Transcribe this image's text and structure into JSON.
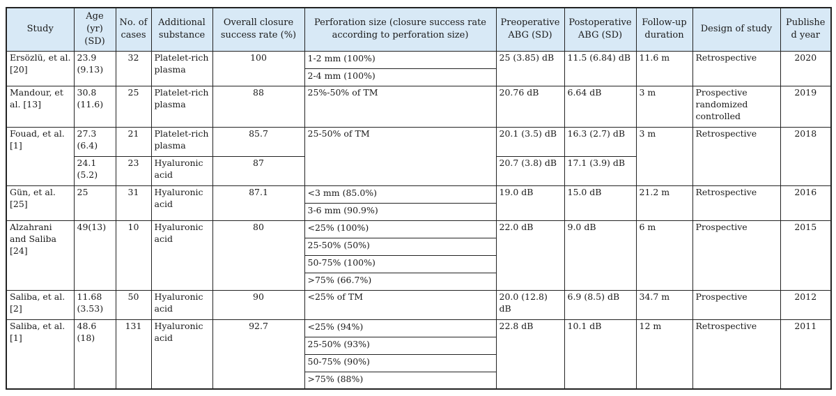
{
  "headers": {
    "study": "Study",
    "age": "Age (yr) (SD)",
    "cases": "No. of cases",
    "substance": "Additional substance",
    "closure": "Overall closure success rate (%)",
    "perforation": "Perforation size (closure success rate according to perforation size)",
    "pre_abg": "Preoperative ABG (SD)",
    "post_abg": "Postoperative ABG (SD)",
    "followup": "Follow-up duration",
    "design": "Design of study",
    "year": "Published year"
  },
  "rows": [
    {
      "study": "Ersözlü, et al. [20]",
      "age": "23.9 (9.13)",
      "cases": "32",
      "substance": "Platelet-rich plasma",
      "closure": "100",
      "perf": [
        "1-2 mm (100%)",
        "2-4 mm (100%)"
      ],
      "pre": "25 (3.85) dB",
      "post": "11.5 (6.84) dB",
      "follow": "11.6 m",
      "design": "Retrospective",
      "year": "2020"
    },
    {
      "study": "Mandour, et al. [13]",
      "age": "30.8 (11.6)",
      "cases": "25",
      "substance": "Platelet-rich plasma",
      "closure": "88",
      "perf": [
        "25%-50% of TM"
      ],
      "pre": "20.76 dB",
      "post": "6.64 dB",
      "follow": "3 m",
      "design": "Prospective randomized controlled",
      "year": "2019"
    },
    {
      "study": "Fouad, et al. [1]",
      "age": "27.3 (6.4)",
      "cases": "21",
      "substance": "Platelet-rich plasma",
      "closure": "85.7",
      "perf": [
        "25-50% of TM"
      ],
      "pre": "20.1 (3.5) dB",
      "post": "16.3 (2.7) dB",
      "follow": "3 m",
      "design": "Retrospective",
      "year": "2018",
      "age2": "24.1 (5.2)",
      "cases2": "23",
      "substance2": "Hyaluronic acid",
      "closure2": "87",
      "pre2": "20.7 (3.8) dB",
      "post2": "17.1 (3.9) dB"
    },
    {
      "study": "Gün, et al. [25]",
      "age": "25",
      "cases": "31",
      "substance": "Hyaluronic acid",
      "closure": "87.1",
      "perf": [
        "<3 mm (85.0%)",
        "3-6 mm (90.9%)"
      ],
      "pre": "19.0 dB",
      "post": "15.0 dB",
      "follow": "21.2 m",
      "design": "Retrospective",
      "year": "2016"
    },
    {
      "study": "Alzahrani and Saliba [24]",
      "age": "49(13)",
      "cases": "10",
      "substance": "Hyaluronic acid",
      "closure": "80",
      "perf": [
        "<25% (100%)",
        "25-50% (50%)",
        "50-75% (100%)",
        ">75% (66.7%)"
      ],
      "pre": "22.0 dB",
      "post": "9.0 dB",
      "follow": "6 m",
      "design": "Prospective",
      "year": "2015"
    },
    {
      "study": "Saliba, et al. [2]",
      "age": "11.68 (3.53)",
      "cases": "50",
      "substance": "Hyaluronic acid",
      "closure": "90",
      "perf": [
        "<25% of TM"
      ],
      "pre": "20.0 (12.8) dB",
      "post": "6.9 (8.5) dB",
      "follow": "34.7 m",
      "design": "Prospective",
      "year": "2012"
    },
    {
      "study": "Saliba, et al. [1]",
      "age": "48.6 (18)",
      "cases": "131",
      "substance": "Hyaluronic acid",
      "closure": "92.7",
      "perf": [
        "<25% (94%)",
        "25-50% (93%)",
        "50-75% (90%)",
        ">75% (88%)"
      ],
      "pre": "22.8 dB",
      "post": "10.1 dB",
      "follow": "12 m",
      "design": "Retrospective",
      "year": "2011"
    }
  ]
}
